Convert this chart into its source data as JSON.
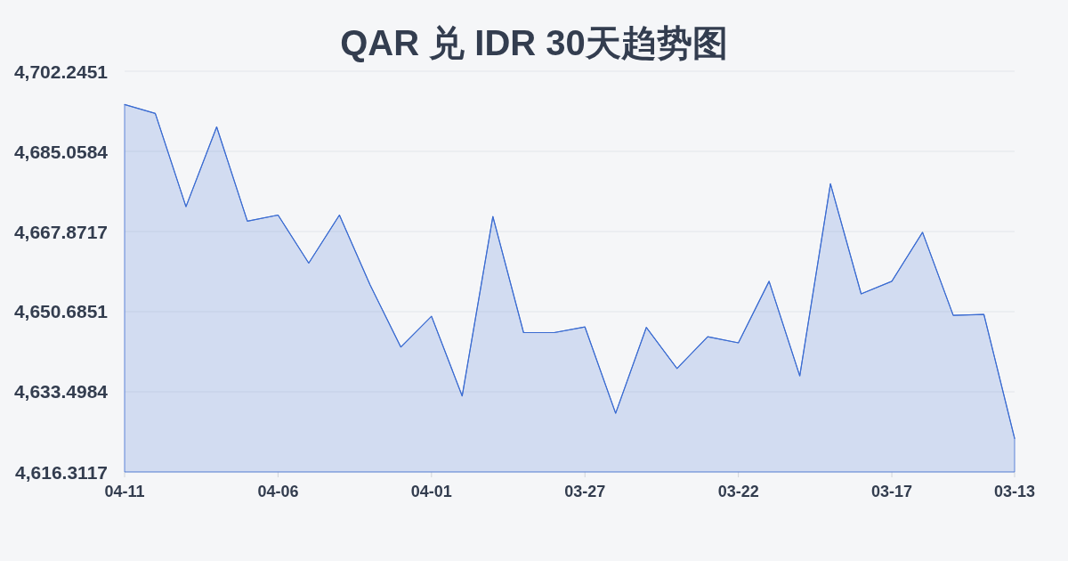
{
  "chart_data": {
    "type": "area",
    "title": "QAR 兑 IDR 30天趋势图",
    "categories": [
      "04-11",
      null,
      null,
      null,
      null,
      "04-06",
      null,
      null,
      null,
      null,
      "04-01",
      null,
      null,
      null,
      null,
      "03-27",
      null,
      null,
      null,
      null,
      "03-22",
      null,
      null,
      null,
      null,
      "03-17",
      null,
      null,
      null,
      "03-13"
    ],
    "values": [
      4695.1,
      4693.2,
      4673.2,
      4690.3,
      4670.1,
      4671.4,
      4661.1,
      4671.4,
      4656.4,
      4643.1,
      4649.7,
      4632.6,
      4671.1,
      4646.2,
      4646.2,
      4647.4,
      4628.9,
      4647.3,
      4638.5,
      4645.3,
      4644.0,
      4657.2,
      4636.9,
      4678.1,
      4654.5,
      4657.2,
      4667.7,
      4649.9,
      4650.1,
      4623.5
    ],
    "color": "#3a6bd1",
    "ylim": [
      4616.3117,
      4702.2451
    ],
    "yticks": [
      {
        "value": 4616.3117,
        "label": "4,616.3117"
      },
      {
        "value": 4633.4984,
        "label": "4,633.4984"
      },
      {
        "value": 4650.6851,
        "label": "4,650.6851"
      },
      {
        "value": 4667.8717,
        "label": "4,667.8717"
      },
      {
        "value": 4685.0584,
        "label": "4,685.0584"
      },
      {
        "value": 4702.2451,
        "label": "4,702.2451"
      }
    ],
    "grid": "y"
  }
}
